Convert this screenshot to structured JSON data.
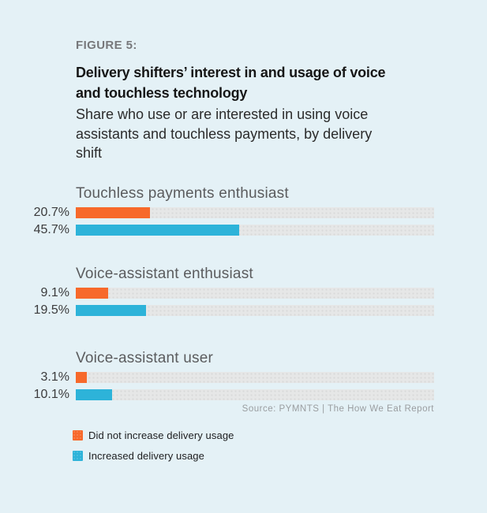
{
  "figure": {
    "label": "FIGURE 5:",
    "title_lines": [
      "Delivery shifters’ interest in and usage of voice",
      "and touchless technology"
    ],
    "subtitle_lines": [
      "Share who use or are interested in using voice",
      "assistants and touchless payments, by delivery",
      "shift"
    ]
  },
  "chart_data": {
    "type": "bar",
    "orientation": "horizontal",
    "title": "Delivery shifters’ interest in and usage of voice and touchless technology",
    "subtitle": "Share who use or are interested in using voice assistants and touchless payments, by delivery shift",
    "xlim": [
      0,
      100
    ],
    "grid": false,
    "legend_position": "bottom-left",
    "categories": [
      "Touchless payments enthusiast",
      "Voice-assistant enthusiast",
      "Voice-assistant user"
    ],
    "series": [
      {
        "name": "Did not increase delivery usage",
        "color": "#F7692B",
        "values": [
          20.7,
          9.1,
          3.1
        ],
        "labels": [
          "20.7%",
          "9.1%",
          "3.1%"
        ]
      },
      {
        "name": "Increased delivery usage",
        "color": "#2DB3D9",
        "values": [
          45.7,
          19.5,
          10.1
        ],
        "labels": [
          "45.7%",
          "19.5%",
          "10.1%"
        ]
      }
    ]
  },
  "source": "Source: PYMNTS | The How We Eat Report",
  "colors": {
    "background": "#E4F1F6",
    "track": "#E6E7E7",
    "orange": "#F7692B",
    "blue": "#2DB3D9",
    "figure_label": "#77787B",
    "title": "#161616",
    "category_label": "#5B5C5E",
    "value_label": "#3B3B3C",
    "source": "#9A9DA0"
  }
}
